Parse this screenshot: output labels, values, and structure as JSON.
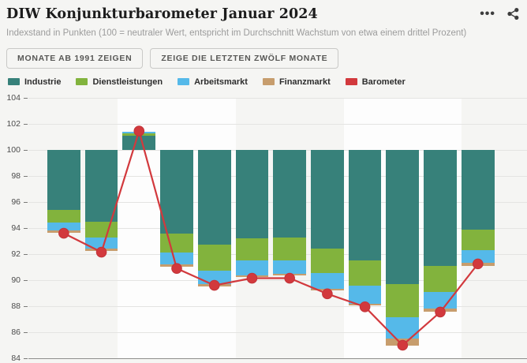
{
  "header": {
    "title": "DIW Konjunkturbarometer Januar 2024",
    "subtitle": "Indexstand in Punkten (100 = neutraler Wert, entspricht im Durchschnitt Wachstum von etwa einem drittel Prozent)",
    "icons": [
      "more-options-icon",
      "share-icon"
    ]
  },
  "controls": {
    "buttons": [
      {
        "label": "MONATE AB 1991 ZEIGEN"
      },
      {
        "label": "ZEIGE DIE LETZTEN ZWÖLF MONATE"
      }
    ]
  },
  "legend": {
    "items": [
      {
        "label": "Industrie",
        "color": "#37817a"
      },
      {
        "label": "Dienstleistungen",
        "color": "#82b33d"
      },
      {
        "label": "Arbeitsmarkt",
        "color": "#55b9e9"
      },
      {
        "label": "Finanzmarkt",
        "color": "#c79d6d"
      },
      {
        "label": "Barometer",
        "color": "#d2393d"
      }
    ]
  },
  "chart_data": {
    "type": "bar",
    "subtype": "stacked-bars-from-baseline-with-line-overlay",
    "title": "DIW Konjunkturbarometer Januar 2024",
    "xlabel": "",
    "ylabel": "Indexstand in Punkten",
    "baseline": 100,
    "ylim": [
      84,
      104.5
    ],
    "yticks": [
      104,
      102,
      100,
      98,
      96,
      94,
      92,
      90,
      88,
      86,
      84
    ],
    "grid": true,
    "x_tick_labels_visible": false,
    "stack_series": [
      {
        "name": "Industrie",
        "color": "#37817a"
      },
      {
        "name": "Dienstleistungen",
        "color": "#82b33d"
      },
      {
        "name": "Arbeitsmarkt",
        "color": "#55b9e9"
      },
      {
        "name": "Finanzmarkt",
        "color": "#c79d6d"
      }
    ],
    "line_series": {
      "name": "Barometer",
      "color": "#d2393d"
    },
    "bars": [
      {
        "stack_ends": [
          95.4,
          94.4,
          93.8,
          93.65
        ],
        "barometer": 93.6
      },
      {
        "stack_ends": [
          94.5,
          93.3,
          92.4,
          92.25
        ],
        "barometer": 92.15
      },
      {
        "stack_ends": [
          101.1,
          101.25,
          101.4,
          101.4
        ],
        "barometer": 101.45
      },
      {
        "stack_ends": [
          93.55,
          92.15,
          91.2,
          91.05
        ],
        "barometer": 90.9
      },
      {
        "stack_ends": [
          92.7,
          90.75,
          89.7,
          89.5
        ],
        "barometer": 89.6
      },
      {
        "stack_ends": [
          93.2,
          91.5,
          90.35,
          90.25
        ],
        "barometer": 90.15
      },
      {
        "stack_ends": [
          93.3,
          91.5,
          90.5,
          90.35
        ],
        "barometer": 90.15
      },
      {
        "stack_ends": [
          92.4,
          90.55,
          89.35,
          89.2
        ],
        "barometer": 88.95
      },
      {
        "stack_ends": [
          91.5,
          89.55,
          88.2,
          88.05
        ],
        "barometer": 87.95
      },
      {
        "stack_ends": [
          89.7,
          87.15,
          85.5,
          85.0
        ],
        "barometer": 85.0
      },
      {
        "stack_ends": [
          91.1,
          89.1,
          87.8,
          87.6
        ],
        "barometer": 87.55
      },
      {
        "stack_ends": [
          93.9,
          92.3,
          91.35,
          91.1
        ],
        "barometer": 91.25
      }
    ],
    "quarter_highlight_bands": [
      {
        "from_bar": 3,
        "to_bar": 5
      },
      {
        "from_bar": 9,
        "to_bar": 11
      }
    ],
    "band_color": "#fdfdfd"
  }
}
